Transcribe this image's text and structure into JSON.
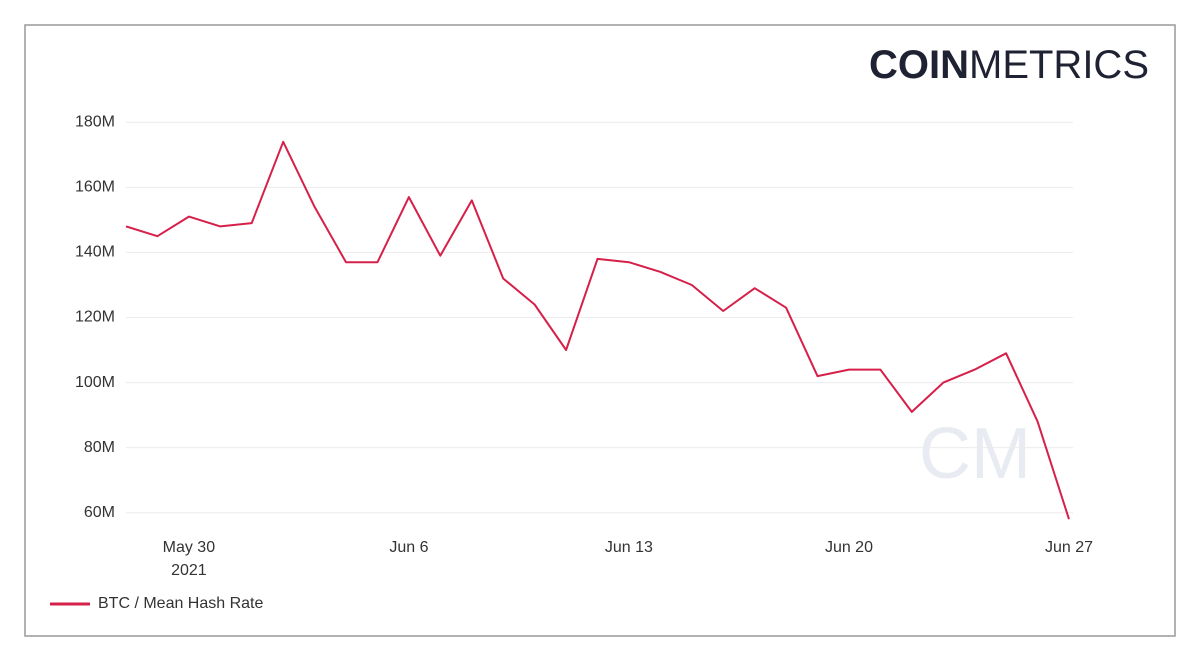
{
  "header": {
    "brand_bold": "COIN",
    "brand_light": "METRICS",
    "watermark": "CM"
  },
  "chart_data": {
    "type": "line",
    "x": [
      "2021-05-28",
      "2021-05-29",
      "2021-05-30",
      "2021-05-31",
      "2021-06-01",
      "2021-06-02",
      "2021-06-03",
      "2021-06-04",
      "2021-06-05",
      "2021-06-06",
      "2021-06-07",
      "2021-06-08",
      "2021-06-09",
      "2021-06-10",
      "2021-06-11",
      "2021-06-12",
      "2021-06-13",
      "2021-06-14",
      "2021-06-15",
      "2021-06-16",
      "2021-06-17",
      "2021-06-18",
      "2021-06-19",
      "2021-06-20",
      "2021-06-21",
      "2021-06-22",
      "2021-06-23",
      "2021-06-24",
      "2021-06-25",
      "2021-06-26",
      "2021-06-27"
    ],
    "series": [
      {
        "name": "BTC / Mean Hash Rate",
        "color": "#d6204a",
        "values": [
          148000000,
          145000000,
          151000000,
          148000000,
          149000000,
          174000000,
          154000000,
          137000000,
          137000000,
          157000000,
          139000000,
          156000000,
          132000000,
          124000000,
          110000000,
          138000000,
          137000000,
          134000000,
          130000000,
          122000000,
          129000000,
          123000000,
          102000000,
          104000000,
          104000000,
          91000000,
          100000000,
          104000000,
          109000000,
          88000000,
          58000000
        ]
      }
    ],
    "xlim": [
      "2021-05-28",
      "2021-06-27"
    ],
    "xticks": [
      {
        "value": "2021-05-30",
        "label": "May 30",
        "year": "2021"
      },
      {
        "value": "2021-06-06",
        "label": "Jun 6"
      },
      {
        "value": "2021-06-13",
        "label": "Jun 13"
      },
      {
        "value": "2021-06-20",
        "label": "Jun 20"
      },
      {
        "value": "2021-06-27",
        "label": "Jun 27"
      }
    ],
    "ylim": [
      55000000,
      185000000
    ],
    "yticks": [
      {
        "value": 60000000,
        "label": "60M"
      },
      {
        "value": 80000000,
        "label": "80M"
      },
      {
        "value": 100000000,
        "label": "100M"
      },
      {
        "value": 120000000,
        "label": "120M"
      },
      {
        "value": 140000000,
        "label": "140M"
      },
      {
        "value": 160000000,
        "label": "160M"
      },
      {
        "value": 180000000,
        "label": "180M"
      }
    ],
    "grid": true
  }
}
